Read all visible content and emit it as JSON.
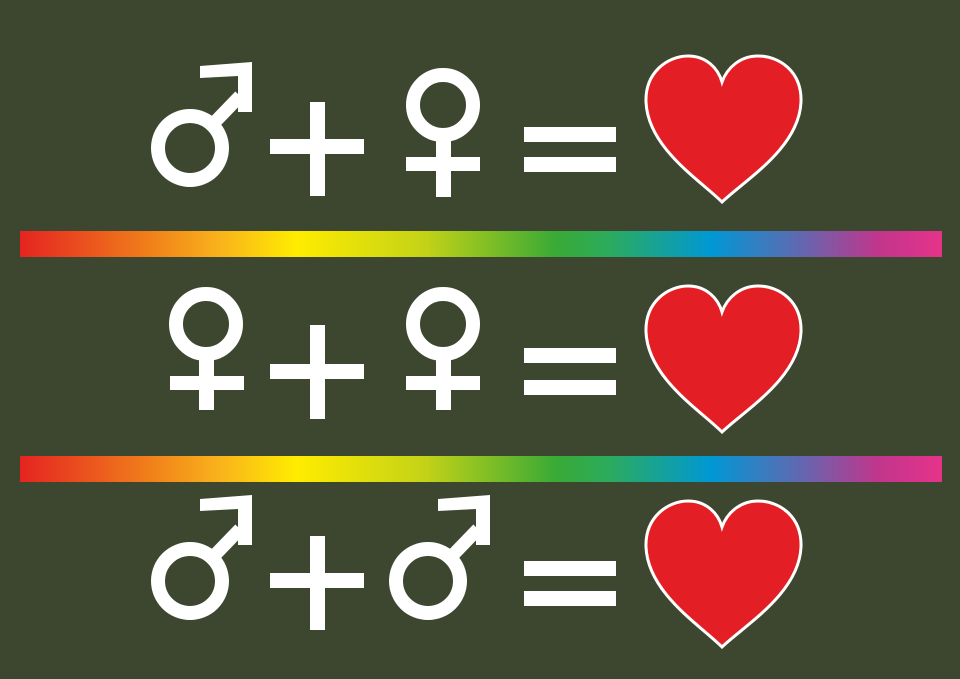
{
  "rows": [
    {
      "left": "male-icon",
      "operator_plus": "plus-icon",
      "right": "female-icon",
      "operator_equals": "equals-icon",
      "result": "heart-icon"
    },
    {
      "left": "female-icon",
      "operator_plus": "plus-icon",
      "right": "female-icon",
      "operator_equals": "equals-icon",
      "result": "heart-icon"
    },
    {
      "left": "male-icon",
      "operator_plus": "plus-icon",
      "right": "male-icon",
      "operator_equals": "equals-icon",
      "result": "heart-icon"
    }
  ],
  "divider": "rainbow-gradient",
  "colors": {
    "background": "#3d4730",
    "symbol": "#ffffff",
    "heart": "#e31e24",
    "rainbow": [
      "#e52421",
      "#f07f1a",
      "#ffec00",
      "#3aaa35",
      "#0098d4",
      "#e6338a"
    ]
  }
}
